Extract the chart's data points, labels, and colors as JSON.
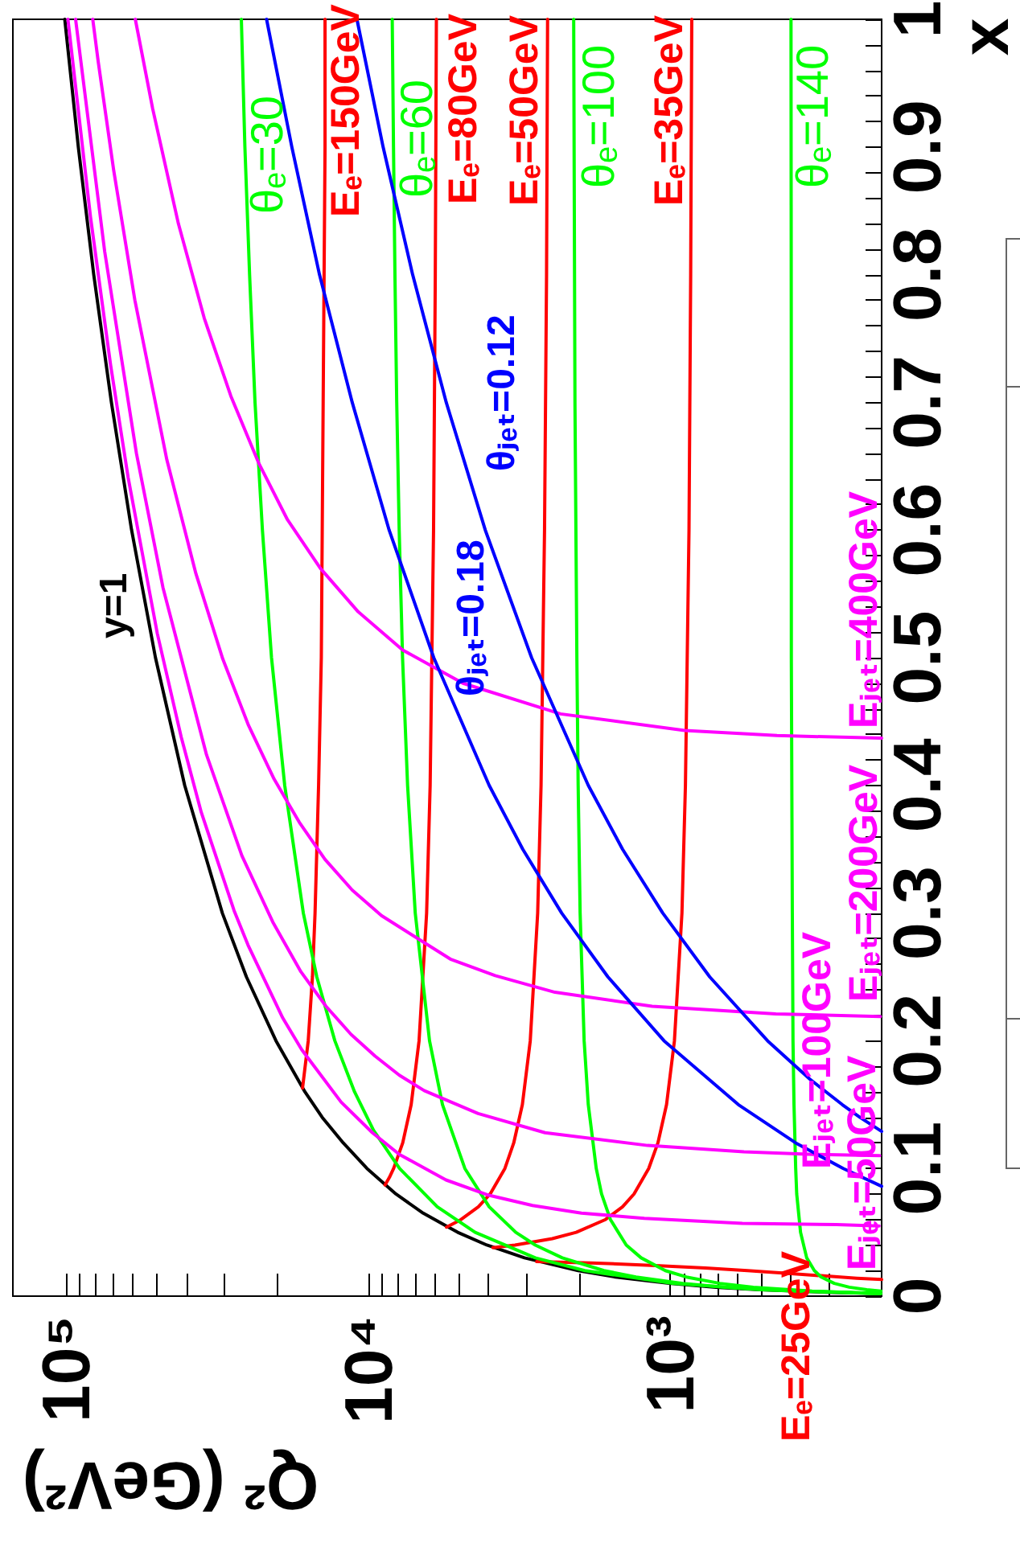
{
  "chart_data": {
    "type": "line",
    "xlabel": "Q² (GeV²)",
    "ylabel": "x",
    "xlim": [
      150000,
      200
    ],
    "ylim": [
      0,
      1
    ],
    "log": "x",
    "xticks": [
      {
        "value": 300,
        "label": null
      },
      {
        "value": 400,
        "label": null
      },
      {
        "value": 500,
        "label": null
      },
      {
        "value": 600,
        "label": null
      },
      {
        "value": 700,
        "label": null
      },
      {
        "value": 800,
        "label": null
      },
      {
        "value": 900,
        "label": null
      },
      {
        "value": 1000,
        "label": "10³"
      },
      {
        "value": 2000,
        "label": null
      },
      {
        "value": 3000,
        "label": null
      },
      {
        "value": 4000,
        "label": null
      },
      {
        "value": 5000,
        "label": null
      },
      {
        "value": 6000,
        "label": null
      },
      {
        "value": 7000,
        "label": null
      },
      {
        "value": 8000,
        "label": null
      },
      {
        "value": 9000,
        "label": null
      },
      {
        "value": 10000,
        "label": "10⁴"
      },
      {
        "value": 20000,
        "label": null
      },
      {
        "value": 30000,
        "label": null
      },
      {
        "value": 40000,
        "label": null
      },
      {
        "value": 50000,
        "label": null
      },
      {
        "value": 60000,
        "label": null
      },
      {
        "value": 70000,
        "label": null
      },
      {
        "value": 80000,
        "label": null
      },
      {
        "value": 90000,
        "label": null
      },
      {
        "value": 100000,
        "label": "10⁵"
      }
    ],
    "yticks": [
      0,
      {
        "value": 0.02,
        "label": null
      },
      {
        "value": 0.04,
        "label": null
      },
      {
        "value": 0.06,
        "label": null
      },
      {
        "value": 0.08,
        "label": null
      },
      0.1,
      {
        "value": 0.12,
        "label": null
      },
      {
        "value": 0.14,
        "label": null
      },
      {
        "value": 0.16,
        "label": null
      },
      {
        "value": 0.18,
        "label": null
      },
      0.2,
      {
        "value": 0.22,
        "label": null
      },
      {
        "value": 0.24,
        "label": null
      },
      {
        "value": 0.26,
        "label": null
      },
      {
        "value": 0.28,
        "label": null
      },
      0.3,
      {
        "value": 0.32,
        "label": null
      },
      {
        "value": 0.34,
        "label": null
      },
      {
        "value": 0.36,
        "label": null
      },
      {
        "value": 0.38,
        "label": null
      },
      0.4,
      {
        "value": 0.42,
        "label": null
      },
      {
        "value": 0.44,
        "label": null
      },
      {
        "value": 0.46,
        "label": null
      },
      {
        "value": 0.48,
        "label": null
      },
      0.5,
      {
        "value": 0.52,
        "label": null
      },
      {
        "value": 0.54,
        "label": null
      },
      {
        "value": 0.56,
        "label": null
      },
      {
        "value": 0.58,
        "label": null
      },
      0.6,
      {
        "value": 0.62,
        "label": null
      },
      {
        "value": 0.64,
        "label": null
      },
      {
        "value": 0.66,
        "label": null
      },
      {
        "value": 0.68,
        "label": null
      },
      0.7,
      {
        "value": 0.72,
        "label": null
      },
      {
        "value": 0.74,
        "label": null
      },
      {
        "value": 0.76,
        "label": null
      },
      {
        "value": 0.78,
        "label": null
      },
      0.8,
      {
        "value": 0.82,
        "label": null
      },
      {
        "value": 0.84,
        "label": null
      },
      {
        "value": 0.86,
        "label": null
      },
      {
        "value": 0.88,
        "label": null
      },
      0.9,
      {
        "value": 0.92,
        "label": null
      },
      {
        "value": 0.94,
        "label": null
      },
      {
        "value": 0.96,
        "label": null
      },
      {
        "value": 0.98,
        "label": null
      },
      1
    ],
    "series": [
      {
        "name": "y=1",
        "color": "#000000",
        "x": [
          202,
          304,
          506,
          708,
          1010,
          1520,
          2020,
          3040,
          4050,
          5060,
          6580,
          8100,
          10100,
          12100,
          14200,
          16200,
          20200,
          25300,
          30400,
          40500,
          50600,
          60700,
          70800,
          81000,
          91100,
          101000
        ],
        "values": [
          0.002,
          0.003,
          0.005,
          0.007,
          0.01,
          0.015,
          0.02,
          0.03,
          0.04,
          0.05,
          0.065,
          0.08,
          0.1,
          0.12,
          0.14,
          0.16,
          0.2,
          0.25,
          0.3,
          0.4,
          0.5,
          0.6,
          0.7,
          0.8,
          0.9,
          1
        ]
      },
      {
        "name": "Eₑ=25GeV",
        "color": "#ff0000",
        "x": [
          200,
          242,
          317,
          416,
          556,
          766,
          1120,
          1830,
          2770
        ],
        "values": [
          0.013,
          0.014,
          0.016,
          0.018,
          0.02,
          0.022,
          0.024,
          0.026,
          0.027
        ]
      },
      {
        "name": "Eₑ=35GeV",
        "color": "#ff0000",
        "x": [
          3870,
          3540,
          3270,
          2460,
          2050,
          1640,
          1440,
          1320,
          1180,
          1100,
          1030,
          970,
          916,
          892,
          868,
          857,
          850
        ],
        "values": [
          0.038,
          0.039,
          0.04,
          0.045,
          0.05,
          0.06,
          0.07,
          0.08,
          0.1,
          0.12,
          0.15,
          0.2,
          0.3,
          0.4,
          0.6,
          0.8,
          1
        ]
      },
      {
        "name": "Eₑ=50GeV",
        "color": "#ff0000",
        "x": [
          5510,
          5210,
          4930,
          4320,
          3950,
          3530,
          3300,
          3090,
          2910,
          2750,
          2680,
          2610,
          2570,
          2550
        ],
        "values": [
          0.054,
          0.057,
          0.06,
          0.07,
          0.08,
          0.1,
          0.12,
          0.15,
          0.2,
          0.3,
          0.4,
          0.6,
          0.8,
          1
        ]
      },
      {
        "name": "Eₑ=80GeV",
        "color": "#ff0000",
        "x": [
          8800,
          8510,
          8240,
          7690,
          7210,
          6790,
          6410,
          6240,
          6080,
          6000,
          5950
        ],
        "values": [
          0.087,
          0.093,
          0.1,
          0.12,
          0.15,
          0.2,
          0.3,
          0.4,
          0.6,
          0.8,
          1
        ]
      },
      {
        "name": "Eₑ=150GeV",
        "color": "#ff0000",
        "x": [
          16500,
          15800,
          15300,
          15000,
          14600,
          14300,
          14200,
          14100,
          14000,
          13900,
          13900
        ],
        "values": [
          0.163,
          0.2,
          0.25,
          0.3,
          0.4,
          0.5,
          0.6,
          0.7,
          0.8,
          0.9,
          1
        ]
      },
      {
        "name": "θₑ=30",
        "color": "#00ff00",
        "x": [
          201,
          499,
          984,
          1920,
          2800,
          4430,
          5910,
          7880,
          9610,
          11100,
          12900,
          14800,
          16400,
          18900,
          20900,
          22400,
          23700,
          24700,
          25600,
          26300
        ],
        "values": [
          0.002,
          0.005,
          0.01,
          0.02,
          0.03,
          0.05,
          0.07,
          0.1,
          0.13,
          0.16,
          0.2,
          0.25,
          0.3,
          0.4,
          0.5,
          0.6,
          0.7,
          0.8,
          0.9,
          1
        ]
      },
      {
        "name": "θₑ=60",
        "color": "#00ff00",
        "x": [
          208,
          388,
          657,
          910,
          1300,
          1660,
          2280,
          2800,
          3250,
          3980,
          4790,
          5680,
          6270,
          6990,
          7410,
          7700,
          7900,
          8050,
          8160,
          8250,
          8330
        ],
        "values": [
          0.002,
          0.004,
          0.007,
          0.01,
          0.015,
          0.02,
          0.03,
          0.04,
          0.05,
          0.07,
          0.1,
          0.15,
          0.2,
          0.3,
          0.4,
          0.5,
          0.6,
          0.7,
          0.8,
          0.9,
          1
        ]
      },
      {
        "name": "θₑ=100",
        "color": "#00ff00",
        "x": [
          202,
          340,
          532,
          686,
          886,
          1040,
          1250,
          1400,
          1580,
          1690,
          1760,
          1870,
          1930,
          1990,
          2020,
          2040,
          2070,
          2090
        ],
        "values": [
          0.002,
          0.004,
          0.007,
          0.01,
          0.015,
          0.02,
          0.03,
          0.04,
          0.06,
          0.08,
          0.1,
          0.15,
          0.2,
          0.3,
          0.4,
          0.5,
          0.7,
          1
        ]
      },
      {
        "name": "θₑ=140",
        "color": "#00ff00",
        "x": [
          201,
          224,
          256,
          287,
          317,
          334,
          354,
          371,
          382,
          385,
          390,
          393,
          395,
          398,
          398,
          399
        ],
        "values": [
          0.004,
          0.005,
          0.007,
          0.01,
          0.015,
          0.02,
          0.03,
          0.05,
          0.08,
          0.1,
          0.15,
          0.2,
          0.3,
          0.5,
          0.7,
          1
        ]
      },
      {
        "name": "Eⱼₑₜ=50GeV",
        "color": "#ff00ff",
        "x": [
          204,
          282,
          578,
          1220,
          1970,
          2860,
          3990,
          5530,
          7890,
          9690,
          12300,
          16600,
          19200,
          25000,
          27800,
          35700,
          41600,
          49900,
          62300,
          71200,
          83000,
          98600
        ],
        "values": [
          0.055,
          0.056,
          0.057,
          0.061,
          0.065,
          0.071,
          0.079,
          0.091,
          0.111,
          0.128,
          0.152,
          0.193,
          0.218,
          0.275,
          0.302,
          0.379,
          0.438,
          0.519,
          0.641,
          0.729,
          0.845,
          1
        ]
      },
      {
        "name": "Eⱼₑₜ=100GeV",
        "color": "#ff00ff",
        "x": [
          203,
          337,
          571,
          1190,
          2600,
          4330,
          6530,
          7890,
          9490,
          11400,
          13800,
          16700,
          20700,
          26200,
          34300,
          47800,
          58500,
          74500,
          93000
        ],
        "values": [
          0.11,
          0.111,
          0.113,
          0.118,
          0.128,
          0.143,
          0.161,
          0.173,
          0.188,
          0.205,
          0.227,
          0.254,
          0.293,
          0.345,
          0.424,
          0.555,
          0.66,
          0.818,
          1
        ]
      },
      {
        "name": "Eⱼₑₜ=200GeV",
        "color": "#ff00ff",
        "x": [
          202,
          448,
          1150,
          2410,
          3800,
          5350,
          9040,
          11300,
          13900,
          16900,
          20500,
          24900,
          30300,
          37200,
          46400,
          59200,
          69600,
          78300,
          81600
        ],
        "values": [
          0.219,
          0.221,
          0.227,
          0.238,
          0.251,
          0.264,
          0.298,
          0.318,
          0.342,
          0.371,
          0.405,
          0.447,
          0.499,
          0.566,
          0.655,
          0.78,
          0.882,
          0.967,
          1
        ]
      },
      {
        "name": "Eⱼₑₜ=400GeV",
        "color": "#ff00ff",
        "x": [
          200,
          444,
          897,
          2310,
          4860,
          7690,
          10800,
          14400,
          18500,
          23100,
          28500,
          34900,
          42500,
          51700,
          59000
        ],
        "values": [
          0.437,
          0.439,
          0.443,
          0.456,
          0.48,
          0.506,
          0.536,
          0.57,
          0.608,
          0.653,
          0.705,
          0.766,
          0.84,
          0.93,
          1
        ]
      },
      {
        "name": "θⱼₑₜ=0.12",
        "color": "#0000ff",
        "x": [
          200,
          236,
          270,
          346,
          477,
          741,
          1060,
          1440,
          1870,
          2880,
          4100,
          5520,
          7130,
          8930,
          10900
        ],
        "values": [
          0.129,
          0.14,
          0.15,
          0.17,
          0.2,
          0.25,
          0.3,
          0.35,
          0.4,
          0.5,
          0.6,
          0.7,
          0.8,
          0.9,
          1
        ]
      },
      {
        "name": "θⱼₑₜ=0.18",
        "color": "#0000ff",
        "x": [
          200,
          268,
          385,
          596,
          1050,
          1610,
          2290,
          3080,
          3980,
          6070,
          8530,
          11300,
          14500,
          17900,
          21700
        ],
        "values": [
          0.086,
          0.1,
          0.12,
          0.15,
          0.2,
          0.25,
          0.3,
          0.35,
          0.4,
          0.5,
          0.6,
          0.7,
          0.8,
          0.9,
          1
        ]
      }
    ]
  }
}
